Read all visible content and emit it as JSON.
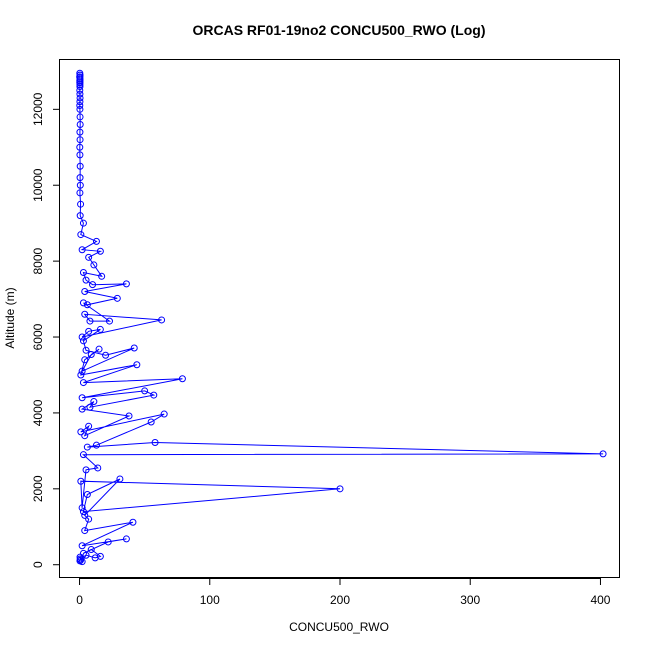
{
  "chart_data": {
    "type": "line",
    "title": "ORCAS RF01-19no2 CONCU500_RWO (Log)",
    "xlabel": "CONCU500_RWO",
    "ylabel": "Altitude (m)",
    "xlim": [
      -15,
      415
    ],
    "ylim": [
      -350,
      13300
    ],
    "xticks": [
      0,
      100,
      200,
      300,
      400
    ],
    "yticks": [
      0,
      2000,
      4000,
      6000,
      8000,
      10000,
      12000
    ],
    "grid": false,
    "legend": "none",
    "markers": "open-circle",
    "color": "#0000ff",
    "series": [
      {
        "x": [
          0.3,
          0.5,
          0.8,
          0.4,
          2,
          5,
          12,
          16,
          9,
          3,
          22,
          36,
          2,
          41,
          4,
          7,
          4,
          31,
          6,
          3,
          200,
          1,
          2,
          5,
          14,
          3,
          402,
          58,
          6,
          13,
          55,
          65,
          1,
          7,
          4,
          38,
          2,
          11,
          8,
          57,
          50,
          2,
          79,
          3,
          44,
          1,
          4,
          15,
          9,
          2,
          42,
          20,
          5,
          3,
          16,
          7,
          2,
          63,
          4,
          8,
          23,
          3,
          6,
          29,
          4,
          36,
          10,
          5,
          3,
          17,
          11,
          7,
          16,
          2,
          13,
          1,
          3,
          0.5,
          0.8,
          0.3,
          0.6,
          0.4,
          0.5,
          0.3,
          0.2,
          0.4,
          0.3,
          0.5,
          0.4,
          0.3,
          0.2,
          0.3,
          0.4,
          0.3,
          0.2,
          0.3,
          0.2,
          0.3,
          0.3,
          0.2,
          0.3,
          0.2,
          0.3,
          0.2,
          0.3,
          0.2,
          0.3,
          0.3
        ],
        "y": [
          100,
          150,
          120,
          200,
          80,
          250,
          180,
          220,
          400,
          300,
          600,
          680,
          500,
          1120,
          900,
          1200,
          1300,
          2260,
          1850,
          1400,
          2000,
          2200,
          1500,
          2500,
          2550,
          2900,
          2920,
          3220,
          3100,
          3150,
          3760,
          3970,
          3500,
          3650,
          3400,
          3920,
          4100,
          4300,
          4150,
          4470,
          4580,
          4400,
          4900,
          4800,
          5270,
          5000,
          5400,
          5680,
          5540,
          5100,
          5710,
          5520,
          5650,
          5900,
          6200,
          6150,
          6000,
          6450,
          6600,
          6420,
          6420,
          6900,
          6850,
          7020,
          7200,
          7400,
          7380,
          7500,
          7700,
          7600,
          7900,
          8100,
          8260,
          8300,
          8520,
          8700,
          9000,
          9200,
          9500,
          9800,
          10000,
          10200,
          10500,
          10800,
          11000,
          11200,
          11400,
          11600,
          11800,
          12000,
          12100,
          12200,
          12300,
          12400,
          12500,
          12600,
          12700,
          12750,
          12800,
          12850,
          12900,
          12950,
          12900,
          12850,
          12800,
          12750,
          12700,
          12650
        ]
      }
    ]
  }
}
